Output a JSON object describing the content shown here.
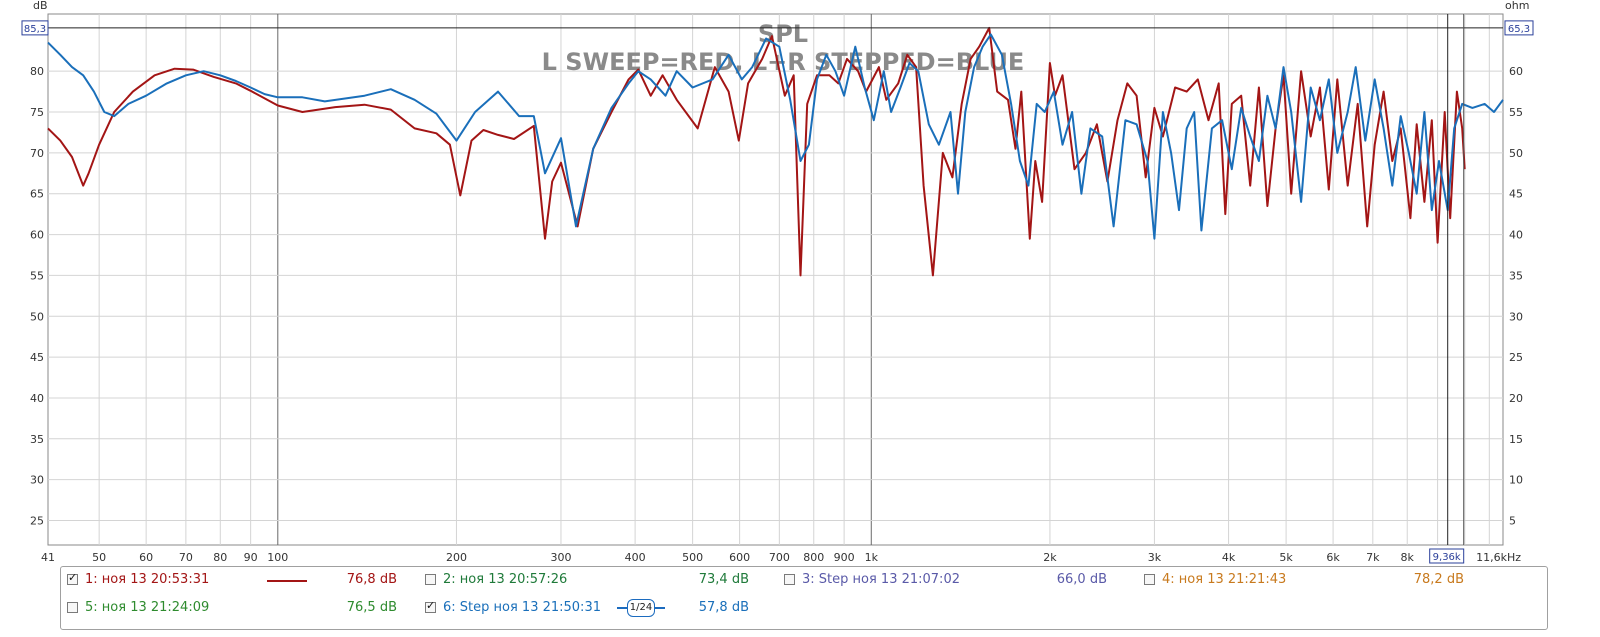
{
  "chart_data": {
    "type": "line",
    "title": "SPL",
    "subtitle": "L SWEEP=RED, L+R STEPPED=BLUE",
    "xlabel_unit": "Hz",
    "left_axis_label": "dB",
    "right_axis_label": "ohm",
    "x_scale": "log",
    "xlim": [
      41,
      11600
    ],
    "ylim": [
      22,
      87
    ],
    "right_ylim": [
      2,
      67
    ],
    "y_ticks": [
      25,
      30,
      35,
      40,
      45,
      50,
      55,
      60,
      65,
      70,
      75,
      80
    ],
    "right_y_ticks": [
      5,
      10,
      15,
      20,
      25,
      30,
      35,
      40,
      45,
      50,
      55,
      60
    ],
    "x_tick_labels": [
      {
        "v": 41,
        "t": "41"
      },
      {
        "v": 50,
        "t": "50"
      },
      {
        "v": 60,
        "t": "60"
      },
      {
        "v": 70,
        "t": "70"
      },
      {
        "v": 80,
        "t": "80"
      },
      {
        "v": 90,
        "t": "90"
      },
      {
        "v": 100,
        "t": "100"
      },
      {
        "v": 200,
        "t": "200"
      },
      {
        "v": 300,
        "t": "300"
      },
      {
        "v": 400,
        "t": "400"
      },
      {
        "v": 500,
        "t": "500"
      },
      {
        "v": 600,
        "t": "600"
      },
      {
        "v": 700,
        "t": "700"
      },
      {
        "v": 800,
        "t": "800"
      },
      {
        "v": 900,
        "t": "900"
      },
      {
        "v": 1000,
        "t": "1k"
      },
      {
        "v": 2000,
        "t": "2k"
      },
      {
        "v": 3000,
        "t": "3k"
      },
      {
        "v": 4000,
        "t": "4k"
      },
      {
        "v": 5000,
        "t": "5k"
      },
      {
        "v": 6000,
        "t": "6k"
      },
      {
        "v": 7000,
        "t": "7k"
      },
      {
        "v": 8000,
        "t": "8k"
      },
      {
        "v": 11600,
        "t": "11,6kHz"
      }
    ],
    "grid": true,
    "cursor": {
      "x": 9360,
      "x_label": "9,36k",
      "y": 85.3,
      "y_label": "85,3",
      "right_label": "65,3"
    },
    "series": [
      {
        "color": "#a31515",
        "points": [
          [
            41,
            73
          ],
          [
            43,
            71.5
          ],
          [
            45,
            69.5
          ],
          [
            47,
            66
          ],
          [
            48,
            67.5
          ],
          [
            50,
            71
          ],
          [
            53,
            75
          ],
          [
            57,
            77.5
          ],
          [
            62,
            79.5
          ],
          [
            67,
            80.3
          ],
          [
            72,
            80.2
          ],
          [
            78,
            79.3
          ],
          [
            85,
            78.5
          ],
          [
            90,
            77.6
          ],
          [
            100,
            75.8
          ],
          [
            110,
            75
          ],
          [
            125,
            75.6
          ],
          [
            140,
            75.9
          ],
          [
            155,
            75.3
          ],
          [
            170,
            73
          ],
          [
            185,
            72.4
          ],
          [
            195,
            71
          ],
          [
            203,
            64.8
          ],
          [
            212,
            71.5
          ],
          [
            222,
            72.8
          ],
          [
            235,
            72.2
          ],
          [
            250,
            71.7
          ],
          [
            270,
            73.3
          ],
          [
            282,
            59.5
          ],
          [
            290,
            66.5
          ],
          [
            300,
            68.8
          ],
          [
            320,
            61
          ],
          [
            340,
            70.5
          ],
          [
            365,
            75
          ],
          [
            390,
            79
          ],
          [
            405,
            80.2
          ],
          [
            425,
            77
          ],
          [
            445,
            79.5
          ],
          [
            470,
            76.5
          ],
          [
            510,
            73
          ],
          [
            545,
            80.5
          ],
          [
            575,
            77.5
          ],
          [
            598,
            71.5
          ],
          [
            620,
            78.5
          ],
          [
            655,
            81.5
          ],
          [
            680,
            84.3
          ],
          [
            715,
            77
          ],
          [
            740,
            79.5
          ],
          [
            760,
            55
          ],
          [
            780,
            76
          ],
          [
            810,
            79.5
          ],
          [
            850,
            79.5
          ],
          [
            880,
            78.5
          ],
          [
            910,
            81.5
          ],
          [
            950,
            80
          ],
          [
            980,
            77.5
          ],
          [
            1030,
            80.5
          ],
          [
            1060,
            76.5
          ],
          [
            1110,
            78.5
          ],
          [
            1150,
            82
          ],
          [
            1190,
            80.5
          ],
          [
            1225,
            66
          ],
          [
            1270,
            55
          ],
          [
            1320,
            70
          ],
          [
            1370,
            67
          ],
          [
            1420,
            76
          ],
          [
            1470,
            81.5
          ],
          [
            1520,
            83
          ],
          [
            1580,
            85.3
          ],
          [
            1630,
            77.5
          ],
          [
            1700,
            76.5
          ],
          [
            1750,
            70.5
          ],
          [
            1790,
            77.5
          ],
          [
            1850,
            59.5
          ],
          [
            1890,
            69
          ],
          [
            1940,
            64
          ],
          [
            2000,
            81
          ],
          [
            2040,
            77
          ],
          [
            2100,
            79.5
          ],
          [
            2200,
            68
          ],
          [
            2300,
            70
          ],
          [
            2400,
            73.5
          ],
          [
            2500,
            66.5
          ],
          [
            2600,
            74
          ],
          [
            2700,
            78.5
          ],
          [
            2800,
            77
          ],
          [
            2900,
            67
          ],
          [
            3000,
            75.5
          ],
          [
            3100,
            72
          ],
          [
            3250,
            78
          ],
          [
            3400,
            77.5
          ],
          [
            3550,
            79
          ],
          [
            3700,
            74
          ],
          [
            3850,
            78.5
          ],
          [
            3950,
            62.5
          ],
          [
            4050,
            76
          ],
          [
            4200,
            77
          ],
          [
            4350,
            66
          ],
          [
            4500,
            78
          ],
          [
            4650,
            63.5
          ],
          [
            4800,
            73
          ],
          [
            4950,
            79.5
          ],
          [
            5100,
            65
          ],
          [
            5300,
            80
          ],
          [
            5500,
            72
          ],
          [
            5700,
            78
          ],
          [
            5900,
            65.5
          ],
          [
            6100,
            79
          ],
          [
            6350,
            66
          ],
          [
            6600,
            76
          ],
          [
            6850,
            61
          ],
          [
            7050,
            71
          ],
          [
            7300,
            77.5
          ],
          [
            7550,
            69
          ],
          [
            7800,
            73
          ],
          [
            8100,
            62
          ],
          [
            8300,
            73.5
          ],
          [
            8550,
            64
          ],
          [
            8800,
            74
          ],
          [
            9000,
            59
          ],
          [
            9250,
            75
          ],
          [
            9450,
            62
          ],
          [
            9700,
            77.5
          ],
          [
            9900,
            73
          ],
          [
            10000,
            68
          ]
        ]
      },
      {
        "color": "#1a6fba",
        "points": [
          [
            41,
            83.5
          ],
          [
            43,
            82
          ],
          [
            45,
            80.5
          ],
          [
            47,
            79.5
          ],
          [
            49,
            77.5
          ],
          [
            51,
            75
          ],
          [
            53,
            74.5
          ],
          [
            56,
            76
          ],
          [
            60,
            77
          ],
          [
            65,
            78.5
          ],
          [
            70,
            79.5
          ],
          [
            75,
            80
          ],
          [
            80,
            79.5
          ],
          [
            85,
            78.8
          ],
          [
            90,
            78
          ],
          [
            95,
            77.2
          ],
          [
            100,
            76.8
          ],
          [
            110,
            76.8
          ],
          [
            120,
            76.3
          ],
          [
            140,
            77
          ],
          [
            155,
            77.8
          ],
          [
            170,
            76.5
          ],
          [
            185,
            74.8
          ],
          [
            200,
            71.5
          ],
          [
            215,
            75
          ],
          [
            235,
            77.5
          ],
          [
            255,
            74.5
          ],
          [
            270,
            74.5
          ],
          [
            282,
            67.5
          ],
          [
            300,
            71.8
          ],
          [
            318,
            61
          ],
          [
            340,
            70.5
          ],
          [
            365,
            75.5
          ],
          [
            390,
            78.5
          ],
          [
            405,
            80
          ],
          [
            425,
            79
          ],
          [
            450,
            77
          ],
          [
            470,
            80
          ],
          [
            500,
            78
          ],
          [
            540,
            79
          ],
          [
            575,
            82
          ],
          [
            605,
            79
          ],
          [
            630,
            80.5
          ],
          [
            665,
            84
          ],
          [
            700,
            83
          ],
          [
            730,
            76.5
          ],
          [
            760,
            69
          ],
          [
            785,
            71
          ],
          [
            810,
            79
          ],
          [
            840,
            82
          ],
          [
            870,
            80
          ],
          [
            900,
            77
          ],
          [
            940,
            83
          ],
          [
            975,
            78
          ],
          [
            1010,
            74
          ],
          [
            1050,
            80
          ],
          [
            1080,
            75
          ],
          [
            1120,
            78
          ],
          [
            1160,
            81
          ],
          [
            1200,
            80
          ],
          [
            1250,
            73.5
          ],
          [
            1300,
            71
          ],
          [
            1360,
            75
          ],
          [
            1400,
            65
          ],
          [
            1440,
            75
          ],
          [
            1490,
            80.5
          ],
          [
            1540,
            83
          ],
          [
            1590,
            84.5
          ],
          [
            1660,
            82
          ],
          [
            1720,
            76
          ],
          [
            1780,
            69
          ],
          [
            1840,
            66
          ],
          [
            1900,
            76
          ],
          [
            1960,
            75
          ],
          [
            2030,
            77.5
          ],
          [
            2100,
            71
          ],
          [
            2180,
            75
          ],
          [
            2260,
            65
          ],
          [
            2340,
            73
          ],
          [
            2450,
            72
          ],
          [
            2560,
            61
          ],
          [
            2680,
            74
          ],
          [
            2800,
            73.5
          ],
          [
            2920,
            69
          ],
          [
            3000,
            59.5
          ],
          [
            3100,
            75
          ],
          [
            3200,
            70
          ],
          [
            3300,
            63
          ],
          [
            3400,
            73
          ],
          [
            3500,
            75
          ],
          [
            3600,
            60.5
          ],
          [
            3750,
            73
          ],
          [
            3900,
            74
          ],
          [
            4050,
            68
          ],
          [
            4200,
            75.5
          ],
          [
            4350,
            72
          ],
          [
            4500,
            69
          ],
          [
            4650,
            77
          ],
          [
            4800,
            73
          ],
          [
            4950,
            80.5
          ],
          [
            5100,
            75
          ],
          [
            5300,
            64
          ],
          [
            5500,
            78
          ],
          [
            5700,
            74
          ],
          [
            5900,
            79
          ],
          [
            6100,
            70
          ],
          [
            6350,
            75
          ],
          [
            6550,
            80.5
          ],
          [
            6800,
            71.5
          ],
          [
            7050,
            79
          ],
          [
            7300,
            73
          ],
          [
            7550,
            66
          ],
          [
            7800,
            74.5
          ],
          [
            8050,
            70
          ],
          [
            8300,
            65
          ],
          [
            8550,
            75
          ],
          [
            8800,
            63
          ],
          [
            9050,
            69
          ],
          [
            9360,
            63
          ],
          [
            9600,
            73
          ],
          [
            9900,
            76
          ],
          [
            10300,
            75.5
          ],
          [
            10800,
            76
          ],
          [
            11200,
            75
          ],
          [
            11600,
            76.5
          ]
        ]
      }
    ]
  },
  "legend": {
    "row1": [
      {
        "num": "1",
        "label": "1: ноя 13 20:53:31",
        "value": "76,8 dB",
        "checked": true,
        "color": "#a31515"
      },
      {
        "num": "2",
        "label": "2: ноя 13 20:57:26",
        "value": "73,4 dB",
        "checked": false,
        "color": "#1f7a3a"
      },
      {
        "num": "3",
        "label": "3: Step ноя 13 21:07:02",
        "value": "66,0 dB",
        "checked": false,
        "color": "#5a5aa8"
      },
      {
        "num": "4",
        "label": "4: ноя 13 21:21:43",
        "value": "78,2 dB",
        "checked": false,
        "color": "#c87a1e"
      }
    ],
    "row2": [
      {
        "num": "5",
        "label": "5: ноя 13 21:24:09",
        "value": "76,5 dB",
        "checked": false,
        "color": "#2e8b2e"
      },
      {
        "num": "6",
        "label": "6: Step ноя 13 21:50:31",
        "value": "57,8 dB",
        "checked": true,
        "color": "#1a6fba",
        "smoothing": "1/24"
      }
    ]
  }
}
